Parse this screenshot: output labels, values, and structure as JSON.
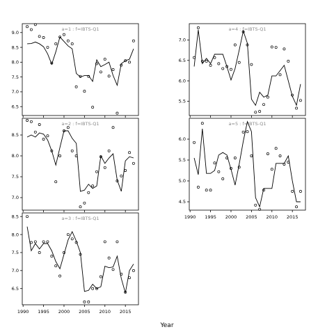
{
  "chart_data": {
    "type": "scatter",
    "xlabel": "Year",
    "panels": [
      {
        "id": "p1",
        "label": "a=1  :  f=IBTS-Q1",
        "ylim": [
          6.2,
          9.3
        ],
        "yticks": [
          6.5,
          7.0,
          7.5,
          8.0,
          8.5,
          9.0
        ],
        "points": {
          "x": [
            1991,
            1992,
            1993,
            1994,
            1995,
            1996,
            1997,
            1998,
            1999,
            2000,
            2001,
            2002,
            2003,
            2004,
            2005,
            2006,
            2007,
            2008,
            2009,
            2010,
            2011,
            2012,
            2013,
            2014,
            2015,
            2016,
            2017
          ],
          "y": [
            9.2,
            9.1,
            9.27,
            8.87,
            8.83,
            8.5,
            7.97,
            8.62,
            8.85,
            8.93,
            8.72,
            8.62,
            7.17,
            7.52,
            7.02,
            7.52,
            6.48,
            7.95,
            7.67,
            8.1,
            7.53,
            7.75,
            6.28,
            7.9,
            8.05,
            8.0,
            8.72
          ]
        },
        "fit": {
          "x": [
            1991,
            1992,
            1993,
            1994,
            1995,
            1996,
            1997,
            1998,
            1999,
            2000,
            2001,
            2002,
            2003,
            2004,
            2005,
            2006,
            2007,
            2008,
            2009,
            2010,
            2011,
            2012,
            2013,
            2014,
            2015,
            2016,
            2017
          ],
          "y": [
            8.62,
            8.63,
            8.68,
            8.62,
            8.52,
            8.28,
            7.93,
            8.35,
            8.85,
            8.7,
            8.55,
            8.45,
            7.62,
            7.5,
            7.55,
            7.55,
            7.35,
            8.08,
            7.85,
            7.92,
            8.0,
            7.55,
            7.22,
            7.95,
            8.05,
            8.1,
            8.45
          ]
        }
      },
      {
        "id": "p2",
        "label": "a=2  :  f=IBTS-Q1",
        "ylim": [
          6.7,
          8.9
        ],
        "yticks": [
          7.0,
          7.5,
          8.0,
          8.5
        ],
        "points": {
          "x": [
            1991,
            1992,
            1993,
            1994,
            1995,
            1996,
            1997,
            1998,
            1999,
            2000,
            2001,
            2002,
            2003,
            2004,
            2005,
            2006,
            2007,
            2008,
            2009,
            2010,
            2011,
            2012,
            2013,
            2014,
            2015,
            2016,
            2017
          ],
          "y": [
            8.85,
            8.82,
            8.57,
            8.75,
            8.4,
            8.48,
            8.12,
            7.38,
            8.0,
            8.6,
            8.68,
            8.12,
            8.0,
            6.78,
            6.87,
            7.12,
            7.28,
            7.62,
            7.98,
            7.72,
            8.12,
            8.68,
            7.4,
            7.52,
            7.65,
            8.08,
            7.82
          ]
        },
        "fit": {
          "x": [
            1991,
            1992,
            1993,
            1994,
            1995,
            1996,
            1997,
            1998,
            1999,
            2000,
            2001,
            2002,
            2003,
            2004,
            2005,
            2006,
            2007,
            2008,
            2009,
            2010,
            2011,
            2012,
            2013,
            2014,
            2015,
            2016,
            2017
          ],
          "y": [
            8.45,
            8.5,
            8.45,
            8.55,
            8.52,
            8.38,
            8.12,
            7.78,
            8.2,
            8.6,
            8.6,
            8.42,
            8.3,
            7.15,
            7.18,
            7.32,
            7.22,
            7.28,
            8.0,
            7.82,
            7.95,
            8.05,
            7.42,
            7.15,
            7.88,
            7.98,
            7.95
          ]
        }
      },
      {
        "id": "p3",
        "label": "a=3  :  f=IBTS-Q1",
        "ylim": [
          6.05,
          8.6
        ],
        "yticks": [
          6.5,
          7.0,
          7.5,
          8.0,
          8.5
        ],
        "points": {
          "x": [
            1991,
            1992,
            1993,
            1994,
            1995,
            1996,
            1997,
            1998,
            1999,
            2000,
            2001,
            2002,
            2003,
            2004,
            2005,
            2006,
            2007,
            2008,
            2009,
            2010,
            2011,
            2012,
            2013,
            2014,
            2015,
            2016,
            2017
          ],
          "y": [
            8.5,
            7.78,
            7.8,
            7.5,
            7.8,
            7.8,
            7.4,
            7.13,
            6.85,
            7.5,
            8.0,
            7.88,
            7.78,
            7.45,
            6.13,
            6.13,
            6.5,
            6.5,
            6.83,
            7.8,
            7.35,
            7.03,
            7.8,
            6.9,
            6.4,
            6.8,
            7.0
          ]
        },
        "fit": {
          "x": [
            1991,
            1992,
            1993,
            1994,
            1995,
            1996,
            1997,
            1998,
            1999,
            2000,
            2001,
            2002,
            2003,
            2004,
            2005,
            2006,
            2007,
            2008,
            2009,
            2010,
            2011,
            2012,
            2013,
            2014,
            2015,
            2016,
            2017
          ],
          "y": [
            8.22,
            7.55,
            7.75,
            7.6,
            7.75,
            7.75,
            7.55,
            7.25,
            7.05,
            7.45,
            7.85,
            8.08,
            7.82,
            7.5,
            6.42,
            6.45,
            6.62,
            6.5,
            6.55,
            7.12,
            7.08,
            7.1,
            7.4,
            6.78,
            6.38,
            7.0,
            7.18
          ]
        }
      },
      {
        "id": "p4",
        "label": "a=4  :  f=IBTS-Q1",
        "ylim": [
          5.15,
          7.4
        ],
        "yticks": [
          5.5,
          6.0,
          6.5,
          7.0
        ],
        "points": {
          "x": [
            1991,
            1992,
            1993,
            1994,
            1995,
            1996,
            1997,
            1998,
            1999,
            2000,
            2001,
            2002,
            2003,
            2004,
            2005,
            2006,
            2007,
            2008,
            2009,
            2010,
            2011,
            2012,
            2013,
            2014,
            2015,
            2016,
            2017
          ],
          "y": [
            6.57,
            7.3,
            6.48,
            6.48,
            6.38,
            6.57,
            6.42,
            6.3,
            6.35,
            6.28,
            6.88,
            6.45,
            7.2,
            6.88,
            6.4,
            5.23,
            5.25,
            5.42,
            5.6,
            6.83,
            6.82,
            6.15,
            6.78,
            6.48,
            5.65,
            5.33,
            5.52
          ]
        },
        "fit": {
          "x": [
            1991,
            1992,
            1993,
            1994,
            1995,
            1996,
            1997,
            1998,
            1999,
            2000,
            2001,
            2002,
            2003,
            2004,
            2005,
            2006,
            2007,
            2008,
            2009,
            2010,
            2011,
            2012,
            2013,
            2014,
            2015,
            2016,
            2017
          ],
          "y": [
            6.35,
            7.25,
            6.42,
            6.55,
            6.42,
            6.65,
            6.65,
            6.65,
            6.35,
            6.02,
            6.3,
            6.75,
            7.22,
            6.92,
            5.55,
            5.4,
            5.72,
            5.6,
            5.65,
            6.12,
            6.12,
            6.25,
            6.38,
            6.0,
            5.62,
            5.4,
            5.92
          ]
        }
      },
      {
        "id": "p5",
        "label": "a=5  :  f=IBTS-Q1",
        "ylim": [
          4.3,
          6.5
        ],
        "yticks": [
          4.5,
          5.0,
          5.5,
          6.0
        ],
        "points": {
          "x": [
            1991,
            1992,
            1993,
            1994,
            1995,
            1996,
            1997,
            1998,
            1999,
            2000,
            2001,
            2002,
            2003,
            2004,
            2005,
            2006,
            2007,
            2008,
            2009,
            2010,
            2011,
            2012,
            2013,
            2014,
            2015,
            2016,
            2017
          ],
          "y": [
            5.92,
            4.85,
            6.38,
            4.78,
            4.78,
            5.43,
            5.22,
            5.05,
            5.55,
            5.3,
            5.55,
            5.33,
            6.17,
            6.18,
            5.6,
            4.42,
            4.32,
            4.78,
            5.65,
            5.28,
            5.78,
            5.6,
            5.4,
            5.45,
            4.75,
            4.38,
            4.75
          ]
        },
        "fit": {
          "x": [
            1991,
            1992,
            1993,
            1994,
            1995,
            1996,
            1997,
            1998,
            1999,
            2000,
            2001,
            2002,
            2003,
            2004,
            2005,
            2006,
            2007,
            2008,
            2009,
            2010,
            2011,
            2012,
            2013,
            2014,
            2015,
            2016,
            2017
          ],
          "y": [
            5.55,
            5.15,
            6.25,
            5.18,
            5.18,
            5.25,
            5.62,
            5.68,
            5.62,
            5.28,
            4.9,
            5.4,
            5.95,
            6.42,
            6.18,
            4.6,
            4.38,
            4.82,
            4.82,
            4.82,
            5.42,
            5.42,
            5.42,
            5.6,
            5.0,
            4.5,
            4.5
          ]
        }
      }
    ],
    "xticks": [
      1990,
      1995,
      2000,
      2005,
      2010,
      2015
    ]
  }
}
